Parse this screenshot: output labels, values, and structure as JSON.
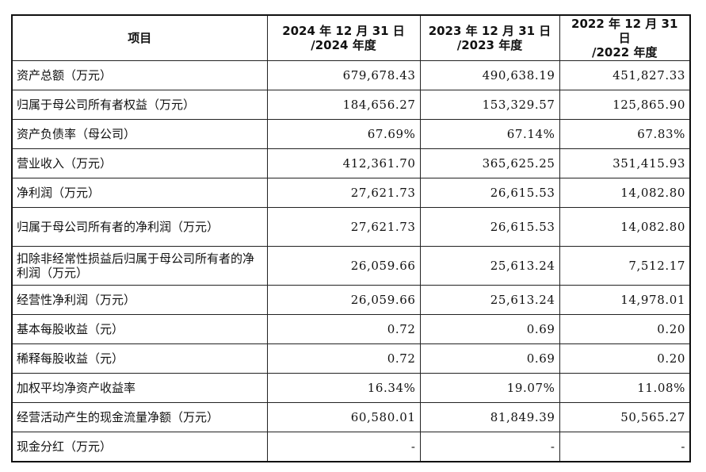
{
  "table": {
    "headers": [
      {
        "line1": "项目",
        "line2": ""
      },
      {
        "line1": "2024 年 12 月 31 日",
        "line2": "/2024 年度"
      },
      {
        "line1": "2023 年 12 月 31 日",
        "line2": "/2023 年度"
      },
      {
        "line1": "2022 年 12 月 31 日",
        "line2": "/2022 年度"
      }
    ],
    "rows": [
      {
        "label": "资产总额（万元）",
        "values": [
          "679,678.43",
          "490,638.19",
          "451,827.33"
        ]
      },
      {
        "label": "归属于母公司所有者权益（万元）",
        "values": [
          "184,656.27",
          "153,329.57",
          "125,865.90"
        ]
      },
      {
        "label": "资产负债率（母公司）",
        "values": [
          "67.69%",
          "67.14%",
          "67.83%"
        ]
      },
      {
        "label": "营业收入（万元）",
        "values": [
          "412,361.70",
          "365,625.25",
          "351,415.93"
        ]
      },
      {
        "label": "净利润（万元）",
        "values": [
          "27,621.73",
          "26,615.53",
          "14,082.80"
        ]
      },
      {
        "label": "归属于母公司所有者的净利润（万元）",
        "values": [
          "27,621.73",
          "26,615.53",
          "14,082.80"
        ]
      },
      {
        "label": "扣除非经常性损益后归属于母公司所有者的净利润（万元）",
        "values": [
          "26,059.66",
          "25,613.24",
          "7,512.17"
        ]
      },
      {
        "label": "经营性净利润（万元）",
        "values": [
          "26,059.66",
          "25,613.24",
          "14,978.01"
        ]
      },
      {
        "label": "基本每股收益（元）",
        "values": [
          "0.72",
          "0.69",
          "0.20"
        ]
      },
      {
        "label": "稀释每股收益（元）",
        "values": [
          "0.72",
          "0.69",
          "0.20"
        ]
      },
      {
        "label": "加权平均净资产收益率",
        "values": [
          "16.34%",
          "19.07%",
          "11.08%"
        ]
      },
      {
        "label": "经营活动产生的现金流量净额（万元）",
        "values": [
          "60,580.01",
          "81,849.39",
          "50,565.27"
        ]
      },
      {
        "label": "现金分红（万元）",
        "values": [
          "-",
          "-",
          "-"
        ]
      }
    ]
  }
}
